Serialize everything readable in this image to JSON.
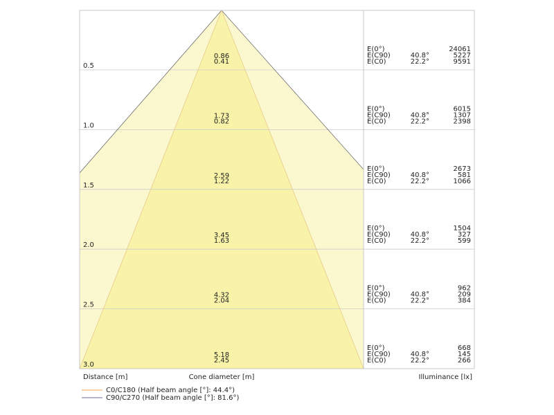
{
  "rows": [
    {
      "distance": "0.5",
      "diameters": [
        0.86,
        0.41
      ],
      "illuminance": [
        24061,
        5227,
        9591
      ]
    },
    {
      "distance": "1.0",
      "diameters": [
        1.73,
        0.82
      ],
      "illuminance": [
        6015,
        1307,
        2398
      ]
    },
    {
      "distance": "1.5",
      "diameters": [
        2.59,
        1.22
      ],
      "illuminance": [
        2673,
        581,
        1066
      ]
    },
    {
      "distance": "2.0",
      "diameters": [
        3.45,
        1.63
      ],
      "illuminance": [
        1504,
        327,
        599
      ]
    },
    {
      "distance": "2.5",
      "diameters": [
        4.32,
        2.04
      ],
      "illuminance": [
        962,
        209,
        384
      ]
    },
    {
      "distance": "3.0",
      "diameters": [
        5.18,
        2.45
      ],
      "illuminance": [
        668,
        145,
        266
      ]
    }
  ],
  "illuminance_labels": [
    "E(0°)",
    "E(C90)",
    "E(C0)"
  ],
  "angles": [
    "40.8°",
    "22.2°"
  ],
  "axis_labels": {
    "distance": "Distance [m]",
    "cone": "Cone diameter [m]",
    "illuminance": "Illuminance [lx]"
  },
  "legend": [
    {
      "label": "C0/C180 (Half beam angle [°]: 44.4°)",
      "color": "#f3b36a"
    },
    {
      "label": "C90/C270 (Half beam angle [°]: 81.6°)",
      "color": "#8a8aa8"
    }
  ]
}
